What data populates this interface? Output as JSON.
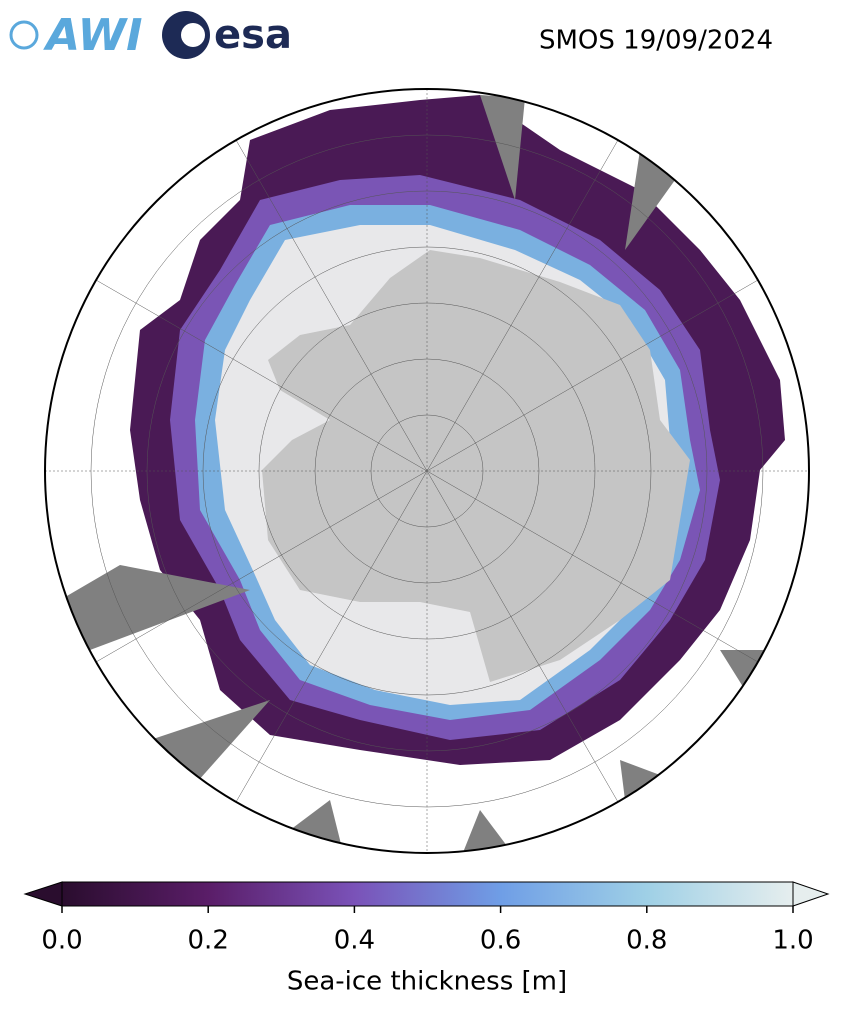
{
  "header": {
    "logo_left": "AWI",
    "logo_right": "esa",
    "title": "SMOS 19/09/2024"
  },
  "colorbar": {
    "label": "Sea-ice thickness [m]",
    "clim": [
      0,
      1
    ],
    "ticks": [
      {
        "value": 0,
        "label": "0.0"
      },
      {
        "value": 0.2,
        "label": "0.2"
      },
      {
        "value": 0.4,
        "label": "0.4"
      },
      {
        "value": 0.6,
        "label": "0.6"
      },
      {
        "value": 0.8,
        "label": "0.8"
      },
      {
        "value": 1,
        "label": "1.0"
      }
    ],
    "colors": [
      "#2a0d2e",
      "#5a1d68",
      "#7a52b8",
      "#6f9ee6",
      "#9fd0e6",
      "#e6eeee"
    ]
  }
}
